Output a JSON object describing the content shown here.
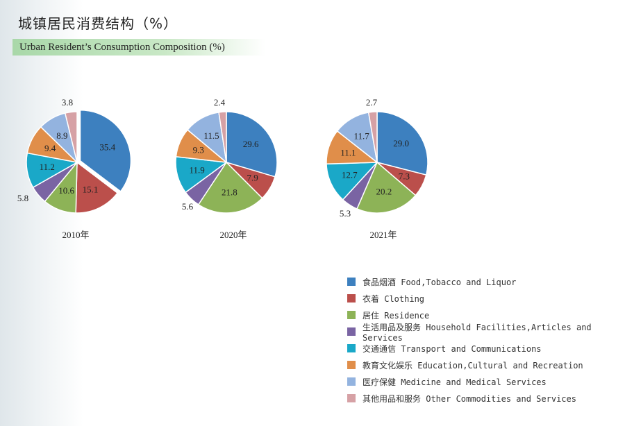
{
  "title_cn": "城镇居民消费结构（%）",
  "title_en": "Urban Resident’s Consumption Composition (%)",
  "legend": [
    {
      "label": "食品烟酒 Food,Tobacco and Liquor",
      "color": "#3d80bf"
    },
    {
      "label": "衣着 Clothing",
      "color": "#bb4f4b"
    },
    {
      "label": "居住 Residence",
      "color": "#8db357"
    },
    {
      "label": "生活用品及服务 Household Facilities,Articles and Services",
      "color": "#7a64a3"
    },
    {
      "label": "交通通信 Transport and Communications",
      "color": "#1aa8c8"
    },
    {
      "label": "教育文化娱乐 Education,Cultural and Recreation",
      "color": "#e08e4a"
    },
    {
      "label": "医疗保健 Medicine and Medical Services",
      "color": "#93b3df"
    },
    {
      "label": "其他用品和服务 Other Commodities and Services",
      "color": "#d6a1a5"
    }
  ],
  "chart_data": [
    {
      "type": "pie",
      "title": "2010年",
      "categories": [
        "食品烟酒 Food,Tobacco and Liquor",
        "衣着 Clothing",
        "居住 Residence",
        "生活用品及服务 Household Facilities,Articles and Services",
        "交通通信 Transport and Communications",
        "教育文化娱乐 Education,Cultural and Recreation",
        "医疗保健 Medicine and Medical Services",
        "其他用品和服务 Other Commodities and Services"
      ],
      "values": [
        35.4,
        15.1,
        10.6,
        5.8,
        11.2,
        9.4,
        8.9,
        3.8
      ],
      "labels": [
        "35.4",
        "15.1",
        "10.6",
        "5.8",
        "11.2",
        "9.4",
        "8.9",
        "3.8"
      ]
    },
    {
      "type": "pie",
      "title": "2020年",
      "categories": [
        "食品烟酒 Food,Tobacco and Liquor",
        "衣着 Clothing",
        "居住 Residence",
        "生活用品及服务 Household Facilities,Articles and Services",
        "交通通信 Transport and Communications",
        "教育文化娱乐 Education,Cultural and Recreation",
        "医疗保健 Medicine and Medical Services",
        "其他用品和服务 Other Commodities and Services"
      ],
      "values": [
        29.6,
        7.9,
        21.8,
        5.6,
        11.9,
        9.3,
        11.5,
        2.4
      ],
      "labels": [
        "29.6",
        "7.9",
        "21.8",
        "5.6",
        "11.9",
        "9.3",
        "11.5",
        "2.4"
      ]
    },
    {
      "type": "pie",
      "title": "2021年",
      "categories": [
        "食品烟酒 Food,Tobacco and Liquor",
        "衣着 Clothing",
        "居住 Residence",
        "生活用品及服务 Household Facilities,Articles and Services",
        "交通通信 Transport and Communications",
        "教育文化娱乐 Education,Cultural and Recreation",
        "医疗保健 Medicine and Medical Services",
        "其他用品和服务 Other Commodities and Services"
      ],
      "values": [
        29.0,
        7.3,
        20.2,
        5.3,
        12.7,
        11.1,
        11.7,
        2.7
      ],
      "labels": [
        "29.0",
        "7.3",
        "20.2",
        "5.3",
        "12.7",
        "11.1",
        "11.7",
        "2.7"
      ]
    }
  ]
}
